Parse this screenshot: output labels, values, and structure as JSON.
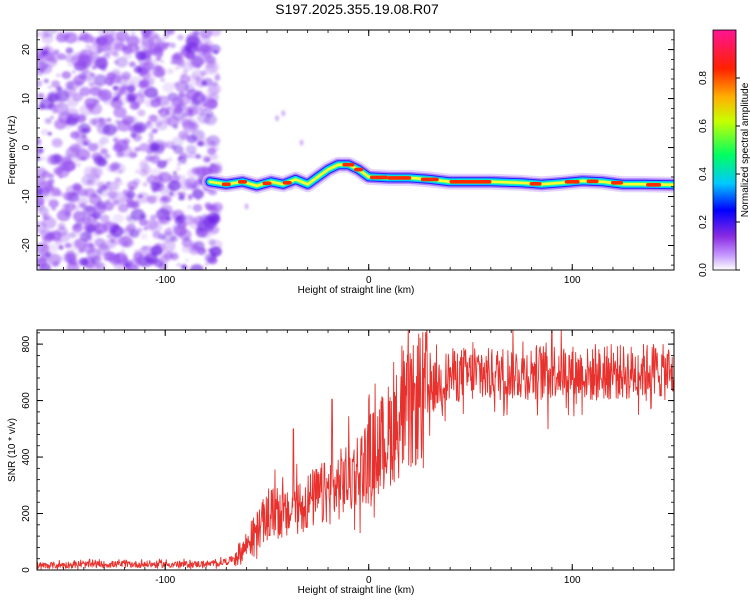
{
  "title": "S197.2025.355.19.08.R07",
  "colors": {
    "snr_line": "#e8302c",
    "noise": "#9a55f0",
    "noise_dark": "#6a1ee6",
    "axis": "#000000"
  },
  "chart_data": [
    {
      "type": "heatmap",
      "title": "S197.2025.355.19.08.R07",
      "xlabel": "Height of straight line (km)",
      "ylabel": "Frequency (Hz)",
      "xlim": [
        -163,
        150
      ],
      "ylim": [
        -25,
        24
      ],
      "xticks": [
        -100,
        0,
        100
      ],
      "yticks": [
        -20,
        -10,
        0,
        10,
        20
      ],
      "colorbar": {
        "label": "Normalized spectral amplitude",
        "range": [
          0,
          1
        ],
        "ticks": [
          "0.0",
          "0.2",
          "0.4",
          "0.6",
          "0.8"
        ],
        "colormap": [
          "#ffffff",
          "#9b30ff",
          "#0000ff",
          "#00e0ff",
          "#00ff40",
          "#ffff00",
          "#ff8000",
          "#ff0000",
          "#ff1493"
        ]
      },
      "noise_region_x": [
        -163,
        -78
      ],
      "signal_track": {
        "x": [
          -78,
          -70,
          -62,
          -55,
          -48,
          -42,
          -36,
          -30,
          -25,
          -20,
          -15,
          -10,
          -5,
          0,
          10,
          20,
          30,
          40,
          60,
          75,
          85,
          95,
          105,
          115,
          125,
          135,
          150
        ],
        "freq_hz": [
          -7,
          -7.5,
          -7,
          -7.8,
          -7,
          -7.5,
          -6.5,
          -7.5,
          -6,
          -4.5,
          -3.5,
          -3.5,
          -4.5,
          -6,
          -6.2,
          -6.2,
          -6.5,
          -7,
          -7,
          -7.2,
          -7.5,
          -7.2,
          -6.8,
          -7,
          -7.5,
          -7.5,
          -7.6
        ]
      }
    },
    {
      "type": "line",
      "xlabel": "Height of straight line (km)",
      "ylabel": "SNR (10 * v/v)",
      "xlim": [
        -163,
        150
      ],
      "ylim": [
        0,
        850
      ],
      "xticks": [
        -100,
        0,
        100
      ],
      "yticks": [
        0,
        200,
        400,
        600,
        800
      ],
      "series": [
        {
          "name": "SNR",
          "x": [
            -163,
            -150,
            -130,
            -110,
            -90,
            -75,
            -68,
            -63,
            -58,
            -52,
            -46,
            -40,
            -34,
            -28,
            -22,
            -16,
            -10,
            -4,
            2,
            8,
            14,
            20,
            26,
            32,
            40,
            50,
            60,
            70,
            80,
            90,
            100,
            110,
            120,
            130,
            140,
            150
          ],
          "values": [
            15,
            18,
            20,
            20,
            20,
            22,
            35,
            60,
            110,
            170,
            210,
            190,
            230,
            250,
            270,
            290,
            330,
            360,
            410,
            460,
            520,
            560,
            610,
            650,
            690,
            690,
            690,
            700,
            700,
            710,
            700,
            690,
            700,
            700,
            710,
            690
          ]
        }
      ],
      "spikes": [
        {
          "x": -46,
          "value": 355
        },
        {
          "x": -37,
          "value": 500
        },
        {
          "x": -18,
          "value": 605
        },
        {
          "x": 90,
          "value": 845
        },
        {
          "x": 88,
          "value": 500
        }
      ]
    }
  ]
}
